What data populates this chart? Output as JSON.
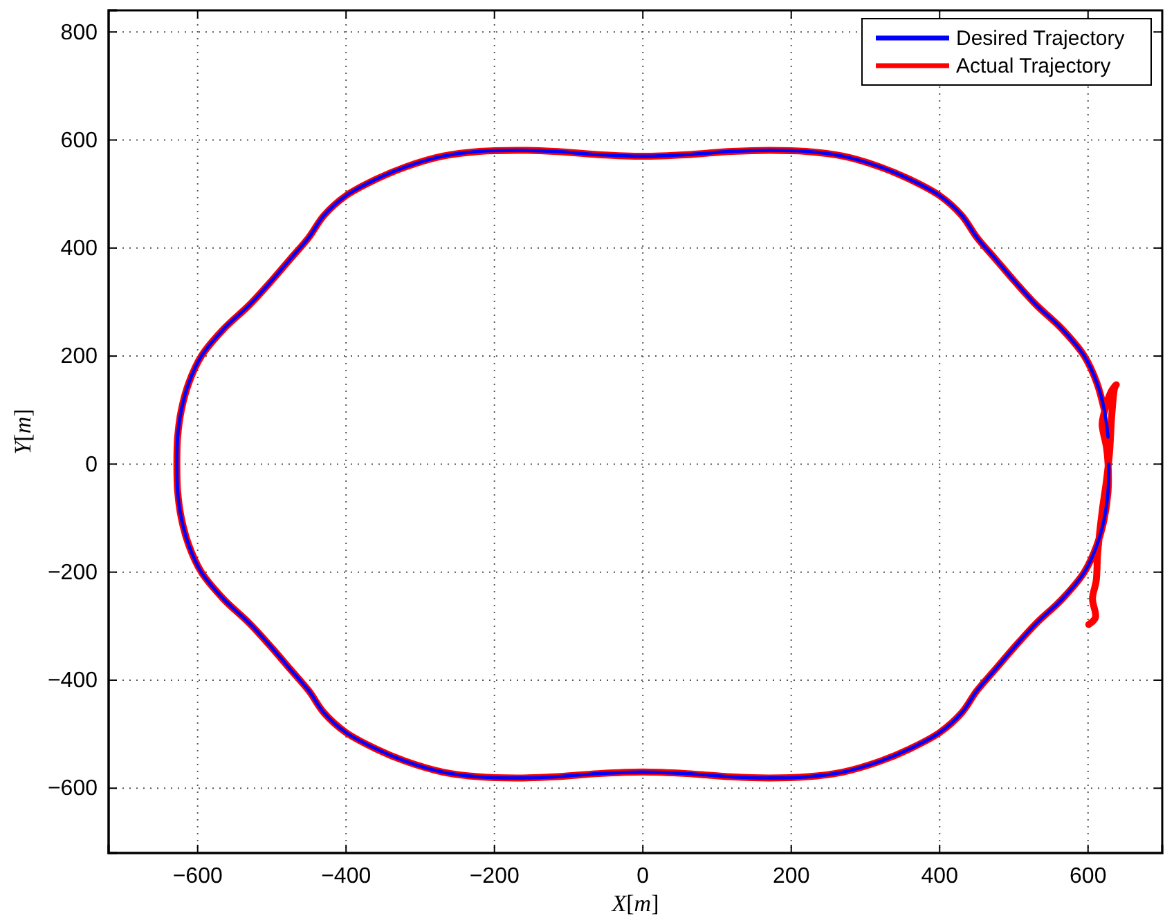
{
  "chart_data": {
    "type": "line",
    "xlabel": "X[m]",
    "ylabel": "Y[m]",
    "xlim": [
      -720,
      700
    ],
    "ylim": [
      -720,
      840
    ],
    "xticks": [
      -600,
      -400,
      -200,
      0,
      200,
      400,
      600
    ],
    "yticks": [
      -600,
      -400,
      -200,
      0,
      200,
      400,
      600,
      800
    ],
    "grid": true,
    "legend": "top right",
    "line_style": "solid",
    "marker": "none",
    "series": [
      {
        "name": "Actual Trajectory",
        "color": "#ff0000",
        "x": [
          601,
          610,
          606,
          611,
          613,
          619,
          625,
          629,
          632,
          636,
          638,
          631,
          621,
          619,
          625,
          627,
          627,
          622,
          612,
          595,
          565,
          530,
          500,
          475,
          450,
          430,
          400,
          360,
          320,
          270,
          220,
          170,
          120,
          60,
          0,
          -60,
          -120,
          -170,
          -220,
          -270,
          -320,
          -360,
          -400,
          -430,
          -450,
          -475,
          -500,
          -530,
          -565,
          -595,
          -612,
          -622,
          -627,
          -628,
          -627,
          -622,
          -612,
          -595,
          -565,
          -530,
          -500,
          -475,
          -450,
          -430,
          -400,
          -360,
          -320,
          -270,
          -220,
          -170,
          -120,
          -60,
          0,
          60,
          120,
          170,
          220,
          270,
          320,
          360,
          400,
          430,
          450,
          475,
          500,
          530,
          565,
          595,
          612,
          622
        ],
        "values": [
          -297,
          -284,
          -249,
          -216,
          -165,
          -88,
          -29,
          22,
          91,
          142,
          147,
          134,
          91,
          73,
          30,
          0,
          -50,
          -100,
          -150,
          -200,
          -250,
          -295,
          -340,
          -380,
          -420,
          -460,
          -497,
          -527,
          -550,
          -570,
          -579,
          -581,
          -579,
          -573,
          -570,
          -573,
          -579,
          -581,
          -579,
          -570,
          -550,
          -527,
          -497,
          -460,
          -420,
          -380,
          -340,
          -295,
          -250,
          -200,
          -150,
          -100,
          -50,
          0,
          50,
          100,
          150,
          200,
          250,
          295,
          340,
          380,
          420,
          460,
          497,
          527,
          550,
          570,
          579,
          581,
          579,
          573,
          570,
          573,
          579,
          581,
          579,
          570,
          550,
          527,
          497,
          460,
          420,
          380,
          340,
          295,
          250,
          200,
          150,
          100
        ]
      },
      {
        "name": "Desired Trajectory",
        "color": "#0000ff",
        "x": [
          628,
          627,
          622,
          612,
          595,
          565,
          530,
          500,
          475,
          450,
          430,
          400,
          360,
          320,
          270,
          220,
          170,
          120,
          60,
          0,
          -60,
          -120,
          -170,
          -220,
          -270,
          -320,
          -360,
          -400,
          -430,
          -450,
          -475,
          -500,
          -530,
          -565,
          -595,
          -612,
          -622,
          -627,
          -628,
          -627,
          -622,
          -612,
          -595,
          -565,
          -530,
          -500,
          -475,
          -450,
          -430,
          -400,
          -360,
          -320,
          -270,
          -220,
          -170,
          -120,
          -60,
          0,
          60,
          120,
          170,
          220,
          270,
          320,
          360,
          400,
          430,
          450,
          475,
          500,
          530,
          565,
          595,
          612,
          622,
          627
        ],
        "values": [
          0,
          -50,
          -100,
          -150,
          -200,
          -250,
          -295,
          -340,
          -380,
          -420,
          -460,
          -497,
          -527,
          -550,
          -570,
          -579,
          -581,
          -579,
          -573,
          -570,
          -573,
          -579,
          -581,
          -579,
          -570,
          -550,
          -527,
          -497,
          -460,
          -420,
          -380,
          -340,
          -295,
          -250,
          -200,
          -150,
          -100,
          -50,
          0,
          50,
          100,
          150,
          200,
          250,
          295,
          340,
          380,
          420,
          460,
          497,
          527,
          550,
          570,
          579,
          581,
          579,
          573,
          570,
          573,
          579,
          581,
          579,
          570,
          550,
          527,
          497,
          460,
          420,
          380,
          340,
          295,
          250,
          200,
          150,
          100,
          50
        ]
      }
    ]
  }
}
